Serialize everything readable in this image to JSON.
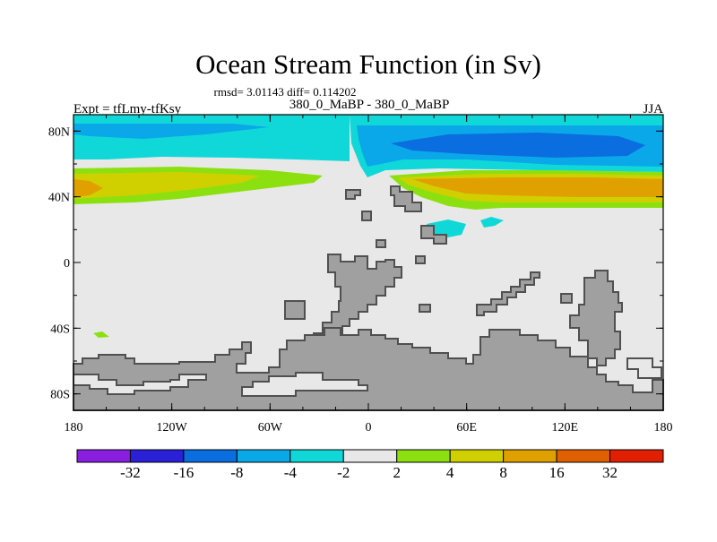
{
  "header": {
    "title": "Ocean Stream Function (in Sv)",
    "stats": "rmsd= 3.01143 diff= 0.114202",
    "expt": "Expt = tfLmy-tfKsy",
    "center_label": "380_0_MaBP - 380_0_MaBP",
    "season": "JJA"
  },
  "map": {
    "x_ticks": [
      "180",
      "120W",
      "60W",
      "0",
      "60E",
      "120E",
      "180"
    ],
    "y_ticks": [
      "80N",
      "40N",
      "0",
      "40S",
      "80S"
    ],
    "land_color": "#a0a0a0",
    "background_color": "#e8e8e8"
  },
  "colorbar": {
    "tick_labels": [
      "-32",
      "-16",
      "-8",
      "-4",
      "-2",
      "2",
      "4",
      "8",
      "16",
      "32"
    ],
    "colors": [
      "#8a1ee0",
      "#2a20d8",
      "#0a6ee0",
      "#0aa8e8",
      "#10d8d8",
      "#e8e8e8",
      "#8ce010",
      "#d0d000",
      "#e0a000",
      "#e06000",
      "#e02000"
    ]
  }
}
